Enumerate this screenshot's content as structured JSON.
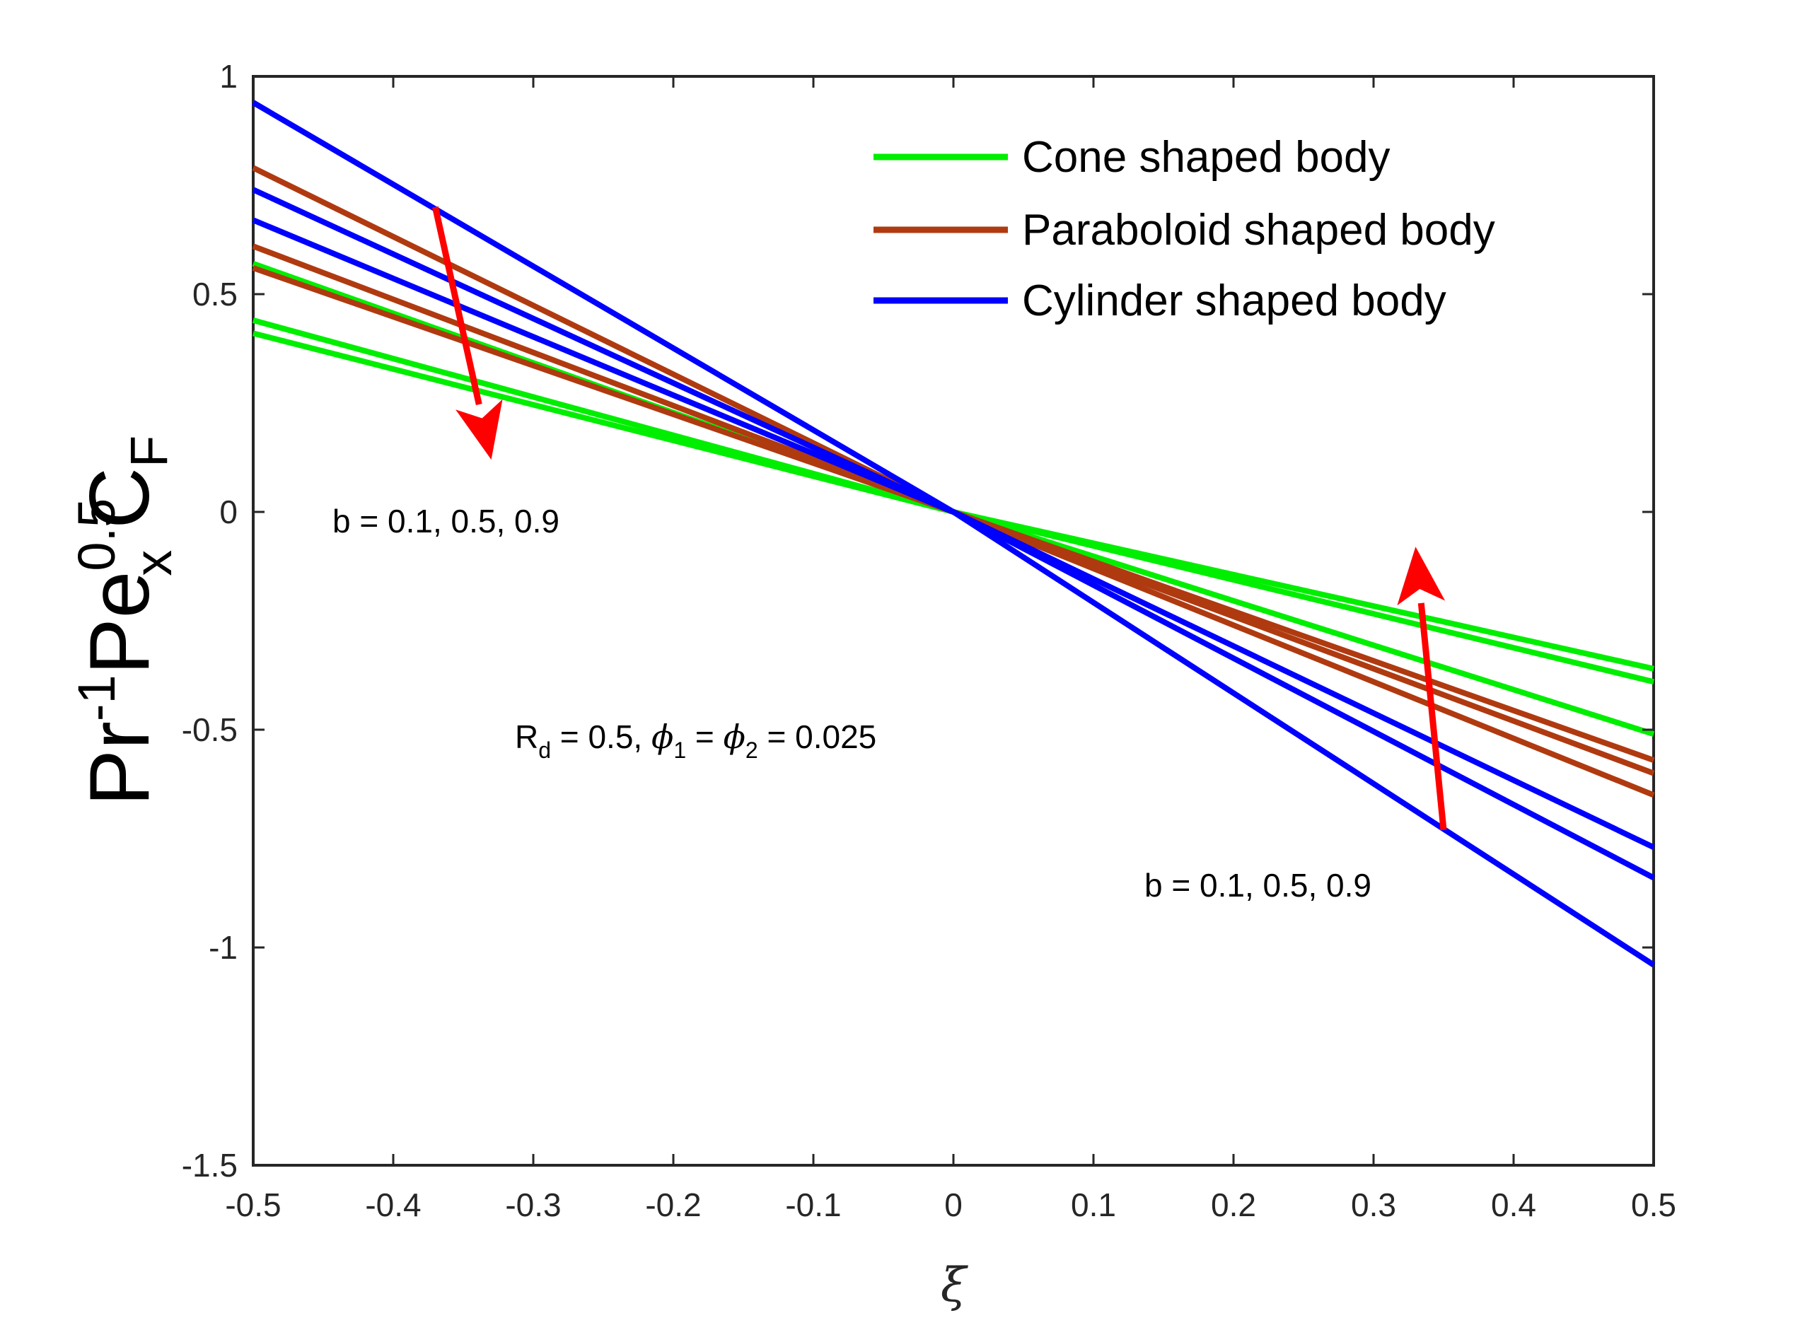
{
  "chart_data": {
    "type": "line",
    "title": "",
    "xlabel": "ξ",
    "ylabel": {
      "base1": "Pr",
      "sup1": "-1",
      "base2": "Pe",
      "sub2": "x",
      "sup2": "0.5",
      "base3": "C",
      "sub3": "F"
    },
    "xlim": [
      -0.5,
      0.5
    ],
    "ylim": [
      -1.5,
      1
    ],
    "xticks": [
      -0.5,
      -0.4,
      -0.3,
      -0.2,
      -0.1,
      0,
      0.1,
      0.2,
      0.3,
      0.4,
      0.5
    ],
    "xtick_labels": [
      "-0.5",
      "-0.4",
      "-0.3",
      "-0.2",
      "-0.1",
      "0",
      "0.1",
      "0.2",
      "0.3",
      "0.4",
      "0.5"
    ],
    "yticks": [
      -1.5,
      -1,
      -0.5,
      0,
      0.5,
      1
    ],
    "ytick_labels": [
      "-1.5",
      "-1",
      "-0.5",
      "0",
      "0.5",
      "1"
    ],
    "grid": false,
    "legend_position": "top-right",
    "legend": [
      {
        "label": "Cone shaped body",
        "color": "#00ee00"
      },
      {
        "label": "Paraboloid shaped body",
        "color": "#b03a10"
      },
      {
        "label": "Cylinder shaped body",
        "color": "#0000ff"
      }
    ],
    "series": [
      {
        "group": "cone",
        "color": "#00ee00",
        "x": [
          -0.5,
          0,
          0.5
        ],
        "y": [
          0.57,
          0,
          -0.51
        ]
      },
      {
        "group": "cone",
        "color": "#00ee00",
        "x": [
          -0.5,
          0,
          0.5
        ],
        "y": [
          0.44,
          0,
          -0.39
        ]
      },
      {
        "group": "cone",
        "color": "#00ee00",
        "x": [
          -0.5,
          0,
          0.5
        ],
        "y": [
          0.41,
          0,
          -0.36
        ]
      },
      {
        "group": "paraboloid",
        "color": "#b03a10",
        "x": [
          -0.5,
          0,
          0.5
        ],
        "y": [
          0.79,
          0,
          -0.65
        ]
      },
      {
        "group": "paraboloid",
        "color": "#b03a10",
        "x": [
          -0.5,
          0,
          0.5
        ],
        "y": [
          0.61,
          0,
          -0.6
        ]
      },
      {
        "group": "paraboloid",
        "color": "#b03a10",
        "x": [
          -0.5,
          0,
          0.5
        ],
        "y": [
          0.56,
          0,
          -0.57
        ]
      },
      {
        "group": "cylinder",
        "color": "#0000ff",
        "x": [
          -0.5,
          0,
          0.5
        ],
        "y": [
          0.94,
          0,
          -1.04
        ]
      },
      {
        "group": "cylinder",
        "color": "#0000ff",
        "x": [
          -0.5,
          0,
          0.5
        ],
        "y": [
          0.74,
          0,
          -0.84
        ]
      },
      {
        "group": "cylinder",
        "color": "#0000ff",
        "x": [
          -0.5,
          0,
          0.5
        ],
        "y": [
          0.67,
          0,
          -0.77
        ]
      }
    ],
    "annotations": [
      {
        "text": "b = 0.1, 0.5, 0.9"
      },
      {
        "text": "b = 0.1, 0.5, 0.9"
      },
      {
        "text": "R",
        "sub": "d",
        "rest1": " = 0.5, ",
        "phi": "ϕ",
        "phi_sub1": "1",
        "eq": " = ",
        "phi_sub2": "2",
        "rest2": " = 0.025"
      }
    ],
    "arrows": [
      {
        "from": [
          -0.37,
          0.7
        ],
        "to": [
          -0.33,
          0.12
        ],
        "color": "#ff0000"
      },
      {
        "from": [
          0.35,
          -0.73
        ],
        "to": [
          0.33,
          -0.08
        ],
        "color": "#ff0000"
      }
    ]
  }
}
